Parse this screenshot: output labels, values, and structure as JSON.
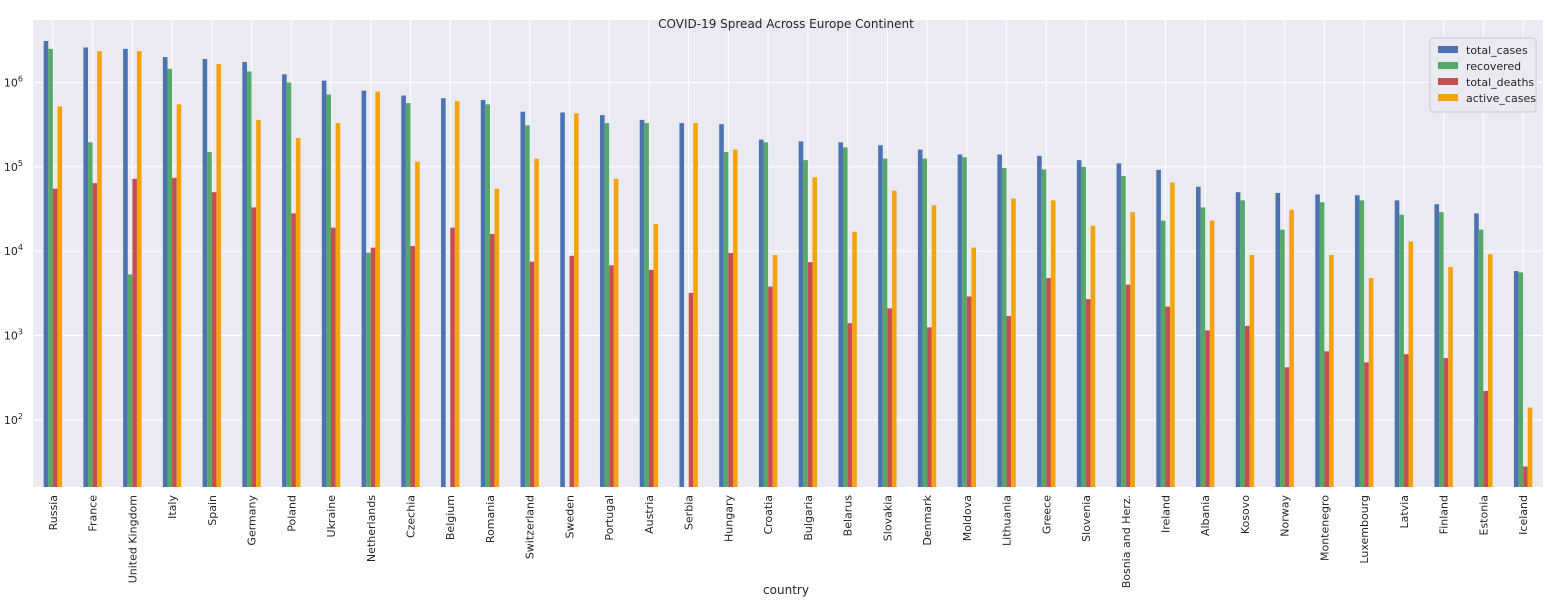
{
  "chart_data": {
    "type": "bar",
    "title": "COVID-19 Spread Across Europe Continent",
    "xlabel": "country",
    "ylabel": "",
    "yscale": "log",
    "ylim": [
      16,
      5500000
    ],
    "ytick_values": [
      100,
      1000,
      10000,
      100000,
      1000000
    ],
    "ytick_labels": [
      {
        "base": "10",
        "exp": "2"
      },
      {
        "base": "10",
        "exp": "3"
      },
      {
        "base": "10",
        "exp": "4"
      },
      {
        "base": "10",
        "exp": "5"
      },
      {
        "base": "10",
        "exp": "6"
      }
    ],
    "grid": true,
    "legend_position": "top-right",
    "background": "#eaeaf2",
    "categories": [
      "Russia",
      "France",
      "United Kingdom",
      "Italy",
      "Spain",
      "Germany",
      "Poland",
      "Ukraine",
      "Netherlands",
      "Czechia",
      "Belgium",
      "Romania",
      "Switzerland",
      "Sweden",
      "Portugal",
      "Austria",
      "Serbia",
      "Hungary",
      "Croatia",
      "Bulgaria",
      "Belarus",
      "Slovakia",
      "Denmark",
      "Moldova",
      "Lithuania",
      "Greece",
      "Slovenia",
      "Bosnia and Herz.",
      "Ireland",
      "Albania",
      "Kosovo",
      "Norway",
      "Montenegro",
      "Luxembourg",
      "Latvia",
      "Finland",
      "Estonia",
      "Iceland"
    ],
    "series": [
      {
        "name": "total_cases",
        "color": "#4c72b0",
        "values": [
          3100000,
          2600000,
          2500000,
          2000000,
          1900000,
          1750000,
          1250000,
          1050000,
          800000,
          700000,
          650000,
          620000,
          450000,
          440000,
          410000,
          360000,
          330000,
          320000,
          210000,
          200000,
          195000,
          180000,
          160000,
          140000,
          140000,
          135000,
          120000,
          110000,
          92000,
          58000,
          50000,
          49000,
          47000,
          46000,
          40000,
          36000,
          28000,
          5800
        ]
      },
      {
        "name": "recovered",
        "color": "#55a868",
        "values": [
          2500000,
          195000,
          5300,
          1450000,
          150000,
          1350000,
          1000000,
          720000,
          9600,
          570000,
          null,
          550000,
          310000,
          null,
          330000,
          330000,
          null,
          150000,
          195000,
          120000,
          170000,
          125000,
          125000,
          130000,
          97000,
          93000,
          100000,
          78000,
          23000,
          33000,
          40000,
          18000,
          38000,
          40000,
          27000,
          29000,
          18000,
          5600
        ]
      },
      {
        "name": "total_deaths",
        "color": "#c44e52",
        "values": [
          55000,
          64000,
          72000,
          74000,
          50000,
          33000,
          28000,
          19000,
          11000,
          11500,
          19000,
          16000,
          7500,
          8800,
          6800,
          6000,
          3200,
          9500,
          3800,
          7400,
          1400,
          2100,
          1250,
          2900,
          1700,
          4800,
          2700,
          4000,
          2200,
          1150,
          1300,
          420,
          650,
          480,
          600,
          540,
          220,
          28
        ]
      },
      {
        "name": "active_cases",
        "color": "#f5a30a",
        "values": [
          520000,
          2350000,
          2350000,
          550000,
          1650000,
          360000,
          220000,
          330000,
          780000,
          115000,
          600000,
          55000,
          125000,
          430000,
          72000,
          21000,
          330000,
          160000,
          9000,
          75000,
          17000,
          52000,
          35000,
          11000,
          42000,
          40000,
          20000,
          29000,
          65000,
          23000,
          9000,
          31000,
          9000,
          4800,
          13000,
          6500,
          9200,
          140
        ]
      }
    ]
  }
}
